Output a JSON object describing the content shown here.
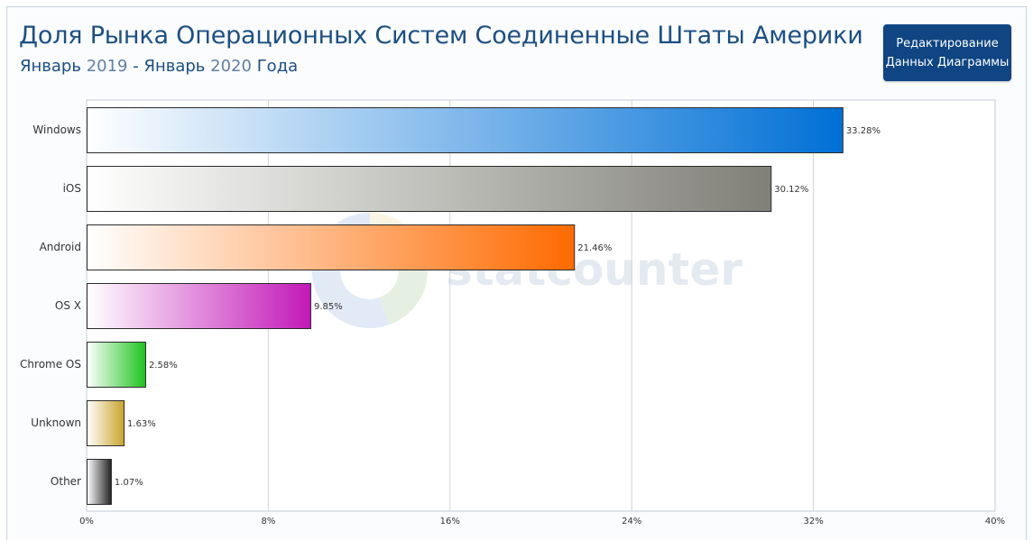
{
  "header": {
    "title": "Доля Рынка Операционных Систем Соединенные Штаты Америки",
    "subtitle_month1": "Январь",
    "subtitle_year1": "2019",
    "subtitle_sep": "-",
    "subtitle_month2": "Январь",
    "subtitle_year2": "2020",
    "subtitle_suffix": "Года"
  },
  "edit_button": {
    "line1": "Редактирование",
    "line2": "Данных Диаграммы"
  },
  "watermark": {
    "text": "statcounter"
  },
  "chart_data": {
    "type": "bar",
    "orientation": "horizontal",
    "categories": [
      "Windows",
      "iOS",
      "Android",
      "OS X",
      "Chrome OS",
      "Unknown",
      "Other"
    ],
    "values": [
      33.28,
      30.12,
      21.46,
      9.85,
      2.58,
      1.63,
      1.07
    ],
    "value_labels": [
      "33.28%",
      "30.12%",
      "21.46%",
      "9.85%",
      "2.58%",
      "1.63%",
      "1.07%"
    ],
    "colors": [
      "#0070d6",
      "#808078",
      "#ff6a00",
      "#c318b8",
      "#1bc41b",
      "#c9a42c",
      "#222222"
    ],
    "xlim": [
      0,
      40
    ],
    "xticks": [
      0,
      8,
      16,
      24,
      32,
      40
    ],
    "xtick_labels": [
      "0%",
      "8%",
      "16%",
      "24%",
      "32%",
      "40%"
    ],
    "grid": true
  }
}
